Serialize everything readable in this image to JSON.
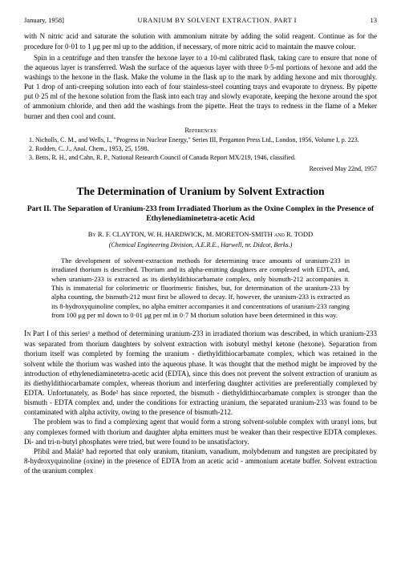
{
  "header": {
    "date": "January, 1958]",
    "running_title": "URANIUM BY SOLVENT EXTRACTION.  PART I",
    "page_num": "13"
  },
  "carryover": {
    "p1": "with N nitric acid and saturate the solution with ammonium nitrate by adding the solid reagent.  Continue as for the procedure for 0·01 to 1 μg per ml up to the addition, if necessary, of more nitric acid to maintain the mauve colour.",
    "p2": "Spin in a centrifuge and then transfer the hexone layer to a 10-ml calibrated flask, taking care to ensure that none of the aqueous layer is transferred.  Wash the surface of the aqueous layer with three 0·5-ml portions of hexone and add the washings to the hexone in the flask. Make the volume in the flask up to the mark by adding hexone and mix thoroughly.  Put 1 drop of anti-creeping solution into each of four stainless-steel counting trays and evaporate to dryness.  By pipette put 0·25 ml of the hexone solution from the flask into each tray and slowly evaporate, keeping the hexone around the spot of ammonium chloride, and then add the washings from the pipette.  Heat the trays to redness in the flame of a Meker burner and then cool and count."
  },
  "references": {
    "heading": "References",
    "items": [
      "1.  Nicholls, C. M., and Wells, I., \"Progress in Nuclear Energy,\" Series III, Pergamon Press Ltd., London, 1956, Volume I, p. 223.",
      "2.  Rodden, C. J., Anal. Chem., 1953, 25, 1598.",
      "3.  Betts, R. H., and Cahn, R. P., National Research Council of Canada Report MX/219, 1946, classified."
    ]
  },
  "received": "Received May 22nd, 1957",
  "title": "The Determination of Uranium by Solvent Extraction",
  "subtitle": "Part II.  The Separation of Uranium-233 from Irradiated Thorium as the Oxine Complex in the Presence of Ethylenediaminetetra-acetic Acid",
  "by_line": "By R. F. CLAYTON, W. H. HARDWICK, M. MORETON-SMITH and R. TODD",
  "affiliation": "(Chemical Engineering Division, A.E.R.E., Harwell, nr. Didcot, Berks.)",
  "abstract": "The development of solvent-extraction methods for determining trace amounts of uranium-233 in irradiated thorium is described.  Thorium and its alpha-emitting daughters are complexed with EDTA, and, when uranium-233 is extracted as its diethyldithiocarbamate complex, only bismuth-212 accompanies it.  This is immaterial for colorimetric or fluorimetric finishes, but, for determination of the uranium-233 by alpha counting, the bismuth-212 must first be allowed to decay.  If, however, the uranium-233 is extracted as its 8-hydroxyquinoline complex, no alpha emitter accompanies it and concentrations of uranium-233 ranging from 100 μg per ml down to 0·01 μg per ml in 0·7 M thorium solution have been determined in this way.",
  "intro": {
    "lead_caps": "In",
    "p1": " Part I of this series¹ a method of determining uranium-233 in irradiated thorium was described, in which uranium-233 was separated from thorium daughters by solvent extraction with isobutyl methyl ketone (hexone).  Separation from thorium itself was completed by forming the uranium - diethyldithiocarbamate complex, which was retained in the solvent while the thorium was washed into the aqueous phase.  It was thought that the method might be improved by the introduction of ethylenediaminetetra-acetic acid (EDTA), since this does not prevent the solvent extraction of uranium as its diethyldithiocarbamate complex, whereas thorium and interfering daughter activities are preferentially complexed by EDTA. Unfortunately, as Bode² has since reported, the bismuth - diethyldithiocarbamate complex is stronger than the bismuth - EDTA complex and, under the conditions for extracting uranium, the separated uranium-233 was found to be contaminated with alpha activity, owing to the presence of bismuth-212.",
    "p2": "The problem was to find a complexing agent that would form a strong solvent-soluble complex with uranyl ions, but any complexes formed with thorium and daughter alpha emitters must be weaker than their respective EDTA complexes.  Di- and tri-n-butyl phosphates were tried, but were found to be unsatisfactory.",
    "p3": "Přibil and Malát³ had reported that only uranium, titanium, vanadium, molybdenum and tungsten are precipitated by 8-hydroxyquinoline (oxine) in the presence of EDTA from an acetic acid - ammonium acetate buffer.  Solvent extraction of the uranium complex"
  }
}
